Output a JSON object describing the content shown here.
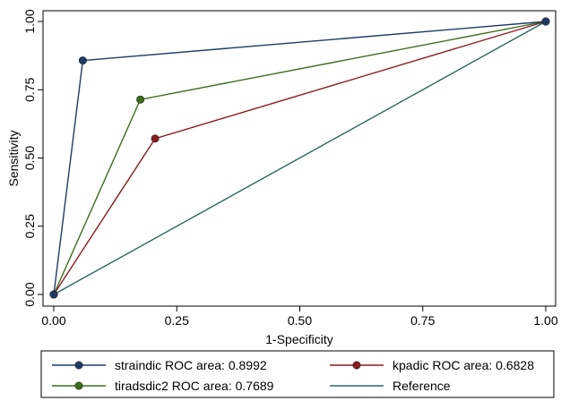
{
  "chart_data": {
    "type": "line",
    "title": "",
    "xlabel": "1-Specificity",
    "ylabel": "Sensitivity",
    "xlim": [
      0,
      1
    ],
    "ylim": [
      0,
      1
    ],
    "xticks": [
      "0.00",
      "0.25",
      "0.50",
      "0.75",
      "1.00"
    ],
    "yticks": [
      "0.00",
      "0.25",
      "0.50",
      "0.75",
      "1.00"
    ],
    "grid": false,
    "legend_position": "bottom",
    "series": [
      {
        "name": "straindic ROC area: 0.8992",
        "color": "#1f3a68",
        "markers": true,
        "x": [
          0,
          0.059,
          1
        ],
        "y": [
          0,
          0.857,
          1
        ]
      },
      {
        "name": "kpadic ROC area: 0.6828",
        "color": "#8b1c22",
        "markers": true,
        "x": [
          0,
          0.206,
          1
        ],
        "y": [
          0,
          0.571,
          1
        ]
      },
      {
        "name": "tiradsdic2 ROC area: 0.7689",
        "color": "#3e6e1a",
        "markers": true,
        "x": [
          0,
          0.176,
          1
        ],
        "y": [
          0,
          0.714,
          1
        ]
      },
      {
        "name": "Reference",
        "color": "#2a6a60",
        "markers": false,
        "x": [
          0,
          1
        ],
        "y": [
          0,
          1
        ]
      }
    ],
    "legend_order": [
      0,
      1,
      2,
      3
    ]
  }
}
